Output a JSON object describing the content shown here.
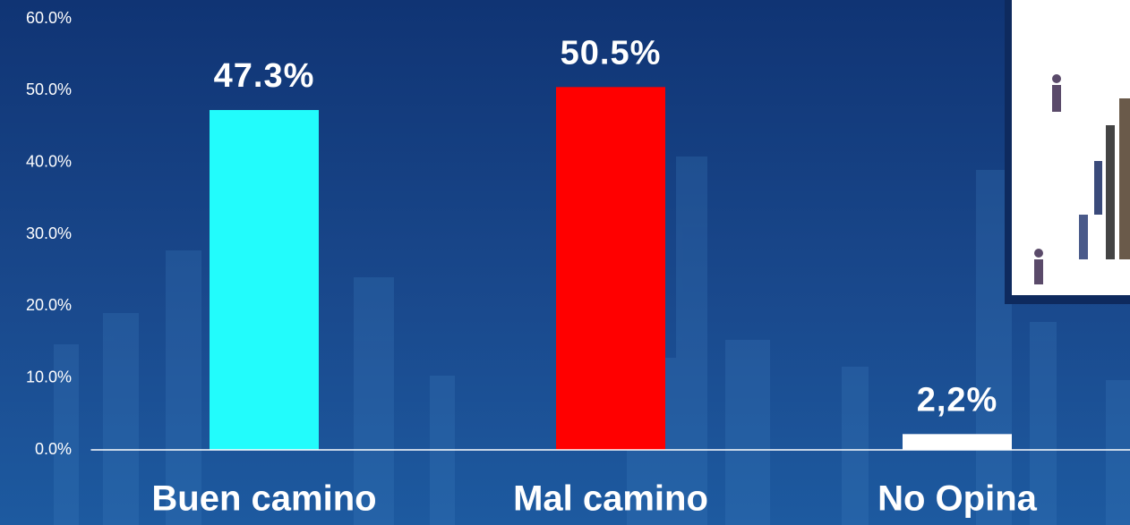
{
  "chart_data": {
    "type": "bar",
    "categories": [
      "Buen camino",
      "Mal camino",
      "No Opina"
    ],
    "values": [
      47.3,
      50.5,
      2.2
    ],
    "value_labels": [
      "47.3%",
      "50.5%",
      "2,2%"
    ],
    "colors": [
      "#22fcfc",
      "#ff0000",
      "#ffffff"
    ],
    "ylim": [
      0,
      60
    ],
    "yticks": [
      {
        "value": 0,
        "label": "0.0%"
      },
      {
        "value": 10,
        "label": "10.0%"
      },
      {
        "value": 20,
        "label": "20.0%"
      },
      {
        "value": 30,
        "label": "30.0%"
      },
      {
        "value": 40,
        "label": "40.0%"
      },
      {
        "value": 50,
        "label": "50.0%"
      },
      {
        "value": 60,
        "label": "60.0%"
      }
    ],
    "grid": false
  }
}
